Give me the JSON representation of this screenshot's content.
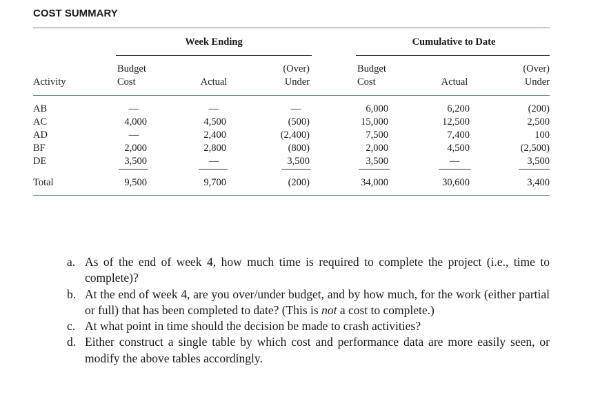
{
  "title": "COST SUMMARY",
  "table": {
    "groups": [
      "Week Ending",
      "Cumulative to Date"
    ],
    "columns": [
      [
        "Activity"
      ],
      [
        "Budget",
        "Cost"
      ],
      [
        "Actual"
      ],
      [
        "(Over)",
        "Under"
      ],
      [
        "Budget",
        "Cost"
      ],
      [
        "Actual"
      ],
      [
        "(Over)",
        "Under"
      ]
    ],
    "rows": [
      [
        "AB",
        "—",
        "—",
        "—",
        "6,000",
        "6,200",
        "(200)"
      ],
      [
        "AC",
        "4,000",
        "4,500",
        "(500)",
        "15,000",
        "12,500",
        "2,500"
      ],
      [
        "AD",
        "—",
        "2,400",
        "(2,400)",
        "7,500",
        "7,400",
        "100"
      ],
      [
        "BF",
        "2,000",
        "2,800",
        "(800)",
        "2,000",
        "4,500",
        "(2,500)"
      ],
      [
        "DE",
        "3,500",
        "—",
        "3,500",
        "3,500",
        "—",
        "3,500"
      ]
    ],
    "total": [
      "Total",
      "9,500",
      "9,700",
      "(200)",
      "34,000",
      "30,600",
      "3,400"
    ]
  },
  "questions": [
    {
      "label": "a.",
      "parts": [
        {
          "text": "As of the end of week 4, how much time is required to complete the project (i.e., time to complete)?"
        }
      ]
    },
    {
      "label": "b.",
      "parts": [
        {
          "text": "At the end of week 4, are you over/under budget, and by how much, for the work (either partial or full) that has been completed to date? (This is "
        },
        {
          "text": "not",
          "italic": true
        },
        {
          "text": " a cost to complete.)"
        }
      ]
    },
    {
      "label": "c.",
      "parts": [
        {
          "text": "At what point in time should the decision be made to crash activities?"
        }
      ]
    },
    {
      "label": "d.",
      "parts": [
        {
          "text": "Either construct a single table by which cost and performance data are more easily seen, or modify the above tables accordingly."
        }
      ]
    }
  ]
}
